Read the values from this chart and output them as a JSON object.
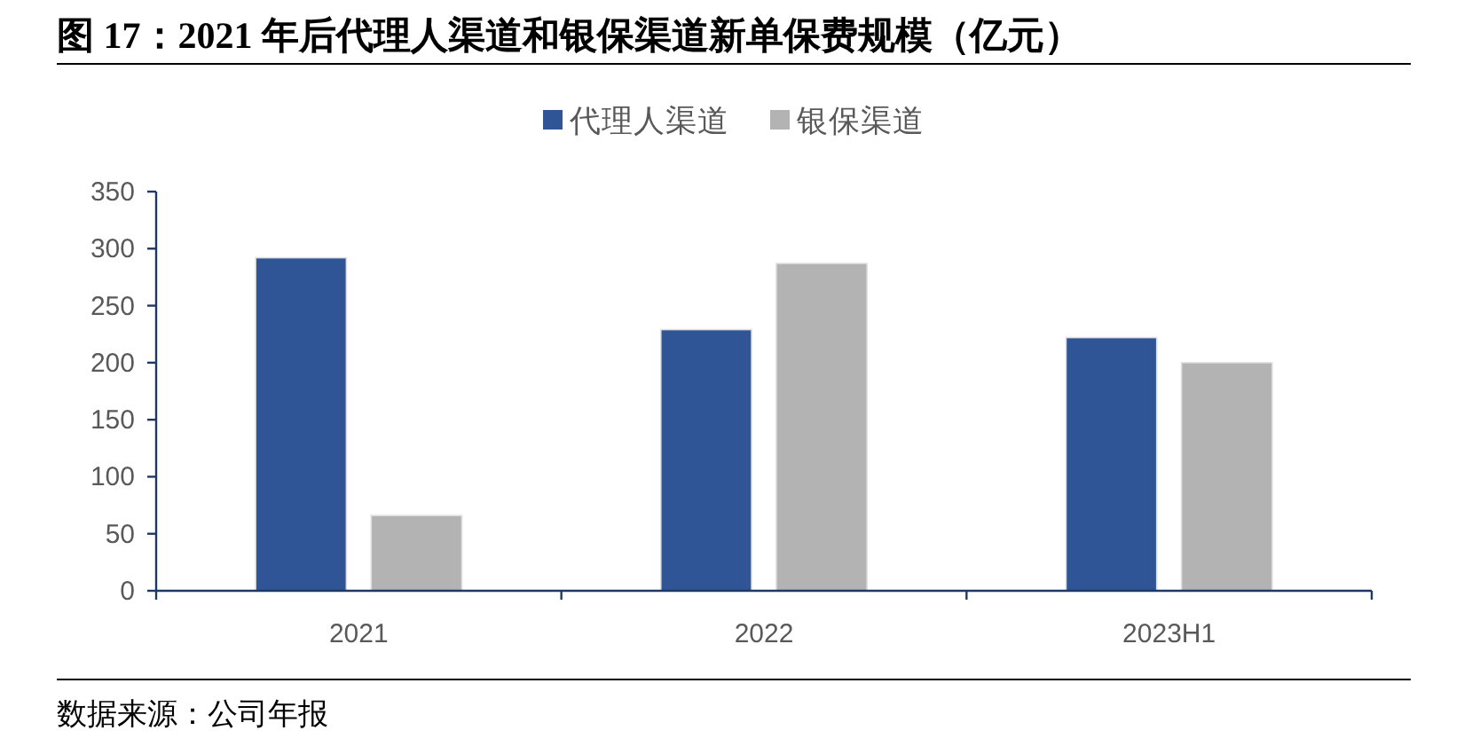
{
  "chart_data": {
    "type": "bar",
    "title": "图 17：2021 年后代理人渠道和银保渠道新单保费规模（亿元）",
    "categories": [
      "2021",
      "2022",
      "2023H1"
    ],
    "series": [
      {
        "name": "代理人渠道",
        "color": "#2f5597",
        "values": [
          292,
          229,
          222
        ]
      },
      {
        "name": "银保渠道",
        "color": "#b3b3b3",
        "values": [
          66,
          287,
          200
        ]
      }
    ],
    "ylim": [
      0,
      350
    ],
    "yticks": [
      0,
      50,
      100,
      150,
      200,
      250,
      300,
      350
    ],
    "grid": false,
    "legend": "top",
    "annotations": [
      "数据来源：公司年报"
    ]
  }
}
